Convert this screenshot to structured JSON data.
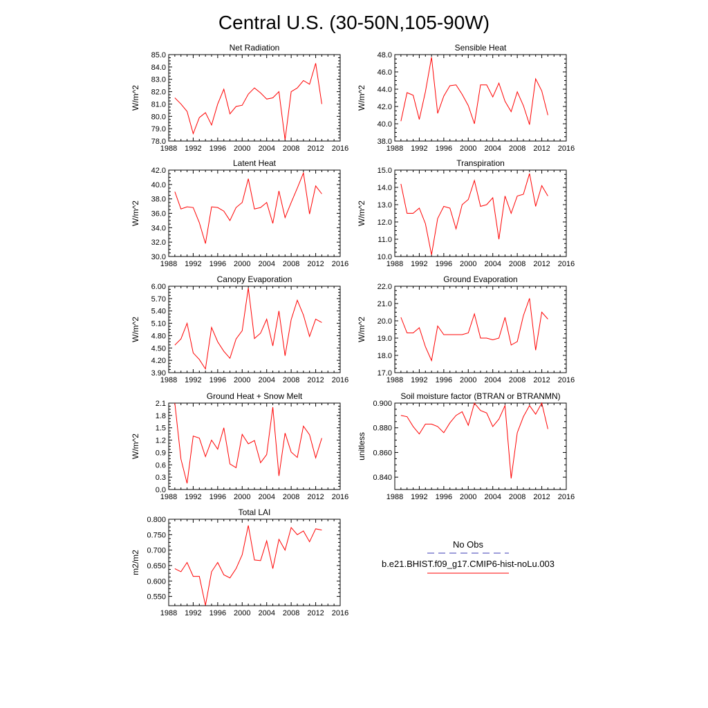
{
  "title": "Central U.S. (30-50N,105-90W)",
  "legend": {
    "entries": [
      {
        "label": "No Obs",
        "color": "#3b3bb5",
        "style": "dashed"
      },
      {
        "label": "b.e21.BHIST.f09_g17.CMIP6-hist-noLu.003",
        "color": "#ff0000",
        "style": "solid"
      }
    ]
  },
  "chart_data": [
    {
      "type": "line",
      "title": "Net Radiation",
      "ylabel": "W/m^2",
      "xlim": [
        1988,
        2016
      ],
      "ylim": [
        78.0,
        85.0
      ],
      "xticks": [
        "1988",
        "1992",
        "1996",
        "2000",
        "2004",
        "2008",
        "2012",
        "2016"
      ],
      "yticks": [
        "78.0",
        "79.0",
        "80.0",
        "81.0",
        "82.0",
        "83.0",
        "84.0",
        "85.0"
      ],
      "x": [
        1989,
        1990,
        1991,
        1992,
        1993,
        1994,
        1995,
        1996,
        1997,
        1998,
        1999,
        2000,
        2001,
        2002,
        2003,
        2004,
        2005,
        2006,
        2007,
        2008,
        2009,
        2010,
        2011,
        2012,
        2013
      ],
      "series": [
        {
          "name": "b.e21.BHIST.f09_g17.CMIP6-hist-noLu.003",
          "color": "#ff0000",
          "values": [
            81.5,
            81.0,
            80.4,
            78.6,
            79.9,
            80.3,
            79.3,
            81.0,
            82.2,
            80.2,
            80.8,
            80.9,
            81.8,
            82.3,
            81.9,
            81.4,
            81.5,
            82.0,
            78.1,
            82.0,
            82.3,
            82.9,
            82.6,
            84.3,
            81.0
          ]
        }
      ]
    },
    {
      "type": "line",
      "title": "Sensible Heat",
      "ylabel": "W/m^2",
      "xlim": [
        1988,
        2016
      ],
      "ylim": [
        38.0,
        48.0
      ],
      "xticks": [
        "1988",
        "1992",
        "1996",
        "2000",
        "2004",
        "2008",
        "2012",
        "2016"
      ],
      "yticks": [
        "38.0",
        "40.0",
        "42.0",
        "44.0",
        "46.0",
        "48.0"
      ],
      "x": [
        1989,
        1990,
        1991,
        1992,
        1993,
        1994,
        1995,
        1996,
        1997,
        1998,
        1999,
        2000,
        2001,
        2002,
        2003,
        2004,
        2005,
        2006,
        2007,
        2008,
        2009,
        2010,
        2011,
        2012,
        2013
      ],
      "series": [
        {
          "name": "b.e21.BHIST.f09_g17.CMIP6-hist-noLu.003",
          "color": "#ff0000",
          "values": [
            40.3,
            43.6,
            43.3,
            40.5,
            43.7,
            47.7,
            41.2,
            43.2,
            44.4,
            44.5,
            43.4,
            42.1,
            40.0,
            44.5,
            44.5,
            43.1,
            44.7,
            42.6,
            41.4,
            43.7,
            42.1,
            39.9,
            45.2,
            43.8,
            41.0
          ]
        }
      ]
    },
    {
      "type": "line",
      "title": "Latent Heat",
      "ylabel": "W/m^2",
      "xlim": [
        1988,
        2016
      ],
      "ylim": [
        30.0,
        42.0
      ],
      "xticks": [
        "1988",
        "1992",
        "1996",
        "2000",
        "2004",
        "2008",
        "2012",
        "2016"
      ],
      "yticks": [
        "30.0",
        "32.0",
        "34.0",
        "36.0",
        "38.0",
        "40.0",
        "42.0"
      ],
      "x": [
        1989,
        1990,
        1991,
        1992,
        1993,
        1994,
        1995,
        1996,
        1997,
        1998,
        1999,
        2000,
        2001,
        2002,
        2003,
        2004,
        2005,
        2006,
        2007,
        2008,
        2009,
        2010,
        2011,
        2012,
        2013
      ],
      "series": [
        {
          "name": "b.e21.BHIST.f09_g17.CMIP6-hist-noLu.003",
          "color": "#ff0000",
          "values": [
            39.0,
            36.6,
            36.9,
            36.8,
            34.7,
            31.8,
            36.9,
            36.8,
            36.3,
            35.0,
            36.8,
            37.5,
            40.8,
            36.6,
            36.8,
            37.5,
            34.6,
            39.1,
            35.4,
            37.5,
            39.5,
            41.6,
            35.9,
            39.8,
            38.7
          ]
        }
      ]
    },
    {
      "type": "line",
      "title": "Transpiration",
      "ylabel": "W/m^2",
      "xlim": [
        1988,
        2016
      ],
      "ylim": [
        10.0,
        15.0
      ],
      "xticks": [
        "1988",
        "1992",
        "1996",
        "2000",
        "2004",
        "2008",
        "2012",
        "2016"
      ],
      "yticks": [
        "10.0",
        "11.0",
        "12.0",
        "13.0",
        "14.0",
        "15.0"
      ],
      "x": [
        1989,
        1990,
        1991,
        1992,
        1993,
        1994,
        1995,
        1996,
        1997,
        1998,
        1999,
        2000,
        2001,
        2002,
        2003,
        2004,
        2005,
        2006,
        2007,
        2008,
        2009,
        2010,
        2011,
        2012,
        2013
      ],
      "series": [
        {
          "name": "b.e21.BHIST.f09_g17.CMIP6-hist-noLu.003",
          "color": "#ff0000",
          "values": [
            14.2,
            12.5,
            12.5,
            12.8,
            11.9,
            10.1,
            12.2,
            12.9,
            12.8,
            11.6,
            13.0,
            13.3,
            14.4,
            12.9,
            13.0,
            13.4,
            11.0,
            13.5,
            12.5,
            13.5,
            13.6,
            14.8,
            12.9,
            14.1,
            13.5
          ]
        }
      ]
    },
    {
      "type": "line",
      "title": "Canopy Evaporation",
      "ylabel": "W/m^2",
      "xlim": [
        1988,
        2016
      ],
      "ylim": [
        3.9,
        6.0
      ],
      "xticks": [
        "1988",
        "1992",
        "1996",
        "2000",
        "2004",
        "2008",
        "2012",
        "2016"
      ],
      "yticks": [
        "3.90",
        "4.20",
        "4.50",
        "4.80",
        "5.10",
        "5.40",
        "5.70",
        "6.00"
      ],
      "x": [
        1989,
        1990,
        1991,
        1992,
        1993,
        1994,
        1995,
        1996,
        1997,
        1998,
        1999,
        2000,
        2001,
        2002,
        2003,
        2004,
        2005,
        2006,
        2007,
        2008,
        2009,
        2010,
        2011,
        2012,
        2013
      ],
      "series": [
        {
          "name": "b.e21.BHIST.f09_g17.CMIP6-hist-noLu.003",
          "color": "#ff0000",
          "values": [
            4.57,
            4.72,
            5.1,
            4.38,
            4.22,
            3.99,
            5.0,
            4.65,
            4.42,
            4.25,
            4.72,
            4.92,
            5.96,
            4.73,
            4.86,
            5.2,
            4.55,
            5.4,
            4.31,
            5.19,
            5.66,
            5.3,
            4.78,
            5.2,
            5.12
          ]
        }
      ]
    },
    {
      "type": "line",
      "title": "Ground Evaporation",
      "ylabel": "W/m^2",
      "xlim": [
        1988,
        2016
      ],
      "ylim": [
        17.0,
        22.0
      ],
      "xticks": [
        "1988",
        "1992",
        "1996",
        "2000",
        "2004",
        "2008",
        "2012",
        "2016"
      ],
      "yticks": [
        "17.0",
        "18.0",
        "19.0",
        "20.0",
        "21.0",
        "22.0"
      ],
      "x": [
        1989,
        1990,
        1991,
        1992,
        1993,
        1994,
        1995,
        1996,
        1997,
        1998,
        1999,
        2000,
        2001,
        2002,
        2003,
        2004,
        2005,
        2006,
        2007,
        2008,
        2009,
        2010,
        2011,
        2012,
        2013
      ],
      "series": [
        {
          "name": "b.e21.BHIST.f09_g17.CMIP6-hist-noLu.003",
          "color": "#ff0000",
          "values": [
            20.2,
            19.3,
            19.3,
            19.6,
            18.5,
            17.7,
            19.7,
            19.2,
            19.2,
            19.2,
            19.2,
            19.3,
            20.4,
            19.0,
            19.0,
            18.9,
            19.0,
            20.2,
            18.6,
            18.8,
            20.3,
            21.3,
            18.3,
            20.5,
            20.1
          ]
        }
      ]
    },
    {
      "type": "line",
      "title": "Ground Heat + Snow Melt",
      "ylabel": "W/m^2",
      "xlim": [
        1988,
        2016
      ],
      "ylim": [
        0.0,
        2.1
      ],
      "xticks": [
        "1988",
        "1992",
        "1996",
        "2000",
        "2004",
        "2008",
        "2012",
        "2016"
      ],
      "yticks": [
        "0.0",
        "0.3",
        "0.6",
        "0.9",
        "1.2",
        "1.5",
        "1.8",
        "2.1"
      ],
      "x": [
        1989,
        1990,
        1991,
        1992,
        1993,
        1994,
        1995,
        1996,
        1997,
        1998,
        1999,
        2000,
        2001,
        2002,
        2003,
        2004,
        2005,
        2006,
        2007,
        2008,
        2009,
        2010,
        2011,
        2012,
        2013
      ],
      "series": [
        {
          "name": "b.e21.BHIST.f09_g17.CMIP6-hist-noLu.003",
          "color": "#ff0000",
          "values": [
            2.1,
            0.74,
            0.15,
            1.3,
            1.25,
            0.8,
            1.2,
            0.98,
            1.5,
            0.62,
            0.53,
            1.34,
            1.11,
            1.19,
            0.65,
            0.85,
            2.0,
            0.33,
            1.37,
            0.91,
            0.78,
            1.54,
            1.33,
            0.77,
            1.25
          ]
        }
      ]
    },
    {
      "type": "line",
      "title": "Soil moisture factor (BTRAN or BTRANMN)",
      "ylabel": "unitless",
      "xlim": [
        1988,
        2016
      ],
      "ylim": [
        0.83,
        0.9
      ],
      "xticks": [
        "1988",
        "1992",
        "1996",
        "2000",
        "2004",
        "2008",
        "2012",
        "2016"
      ],
      "yticks": [
        "0.840",
        "0.860",
        "0.880",
        "0.900"
      ],
      "x": [
        1989,
        1990,
        1991,
        1992,
        1993,
        1994,
        1995,
        1996,
        1997,
        1998,
        1999,
        2000,
        2001,
        2002,
        2003,
        2004,
        2005,
        2006,
        2007,
        2008,
        2009,
        2010,
        2011,
        2012,
        2013
      ],
      "series": [
        {
          "name": "b.e21.BHIST.f09_g17.CMIP6-hist-noLu.003",
          "color": "#ff0000",
          "values": [
            0.89,
            0.889,
            0.881,
            0.875,
            0.883,
            0.883,
            0.881,
            0.876,
            0.884,
            0.89,
            0.893,
            0.882,
            0.9,
            0.894,
            0.892,
            0.881,
            0.887,
            0.898,
            0.839,
            0.876,
            0.889,
            0.898,
            0.891,
            0.9,
            0.879
          ]
        }
      ]
    },
    {
      "type": "line",
      "title": "Total LAI",
      "ylabel": "m2/m2",
      "xlim": [
        1988,
        2016
      ],
      "ylim": [
        0.52,
        0.8
      ],
      "xticks": [
        "1988",
        "1992",
        "1996",
        "2000",
        "2004",
        "2008",
        "2012",
        "2016"
      ],
      "yticks": [
        "0.550",
        "0.600",
        "0.650",
        "0.700",
        "0.750",
        "0.800"
      ],
      "x": [
        1989,
        1990,
        1991,
        1992,
        1993,
        1994,
        1995,
        1996,
        1997,
        1998,
        1999,
        2000,
        2001,
        2002,
        2003,
        2004,
        2005,
        2006,
        2007,
        2008,
        2009,
        2010,
        2011,
        2012,
        2013
      ],
      "series": [
        {
          "name": "b.e21.BHIST.f09_g17.CMIP6-hist-noLu.003",
          "color": "#ff0000",
          "values": [
            0.64,
            0.63,
            0.66,
            0.615,
            0.615,
            0.521,
            0.63,
            0.66,
            0.62,
            0.61,
            0.64,
            0.685,
            0.78,
            0.668,
            0.666,
            0.73,
            0.64,
            0.735,
            0.7,
            0.773,
            0.75,
            0.762,
            0.727,
            0.769,
            0.765
          ]
        }
      ]
    }
  ]
}
